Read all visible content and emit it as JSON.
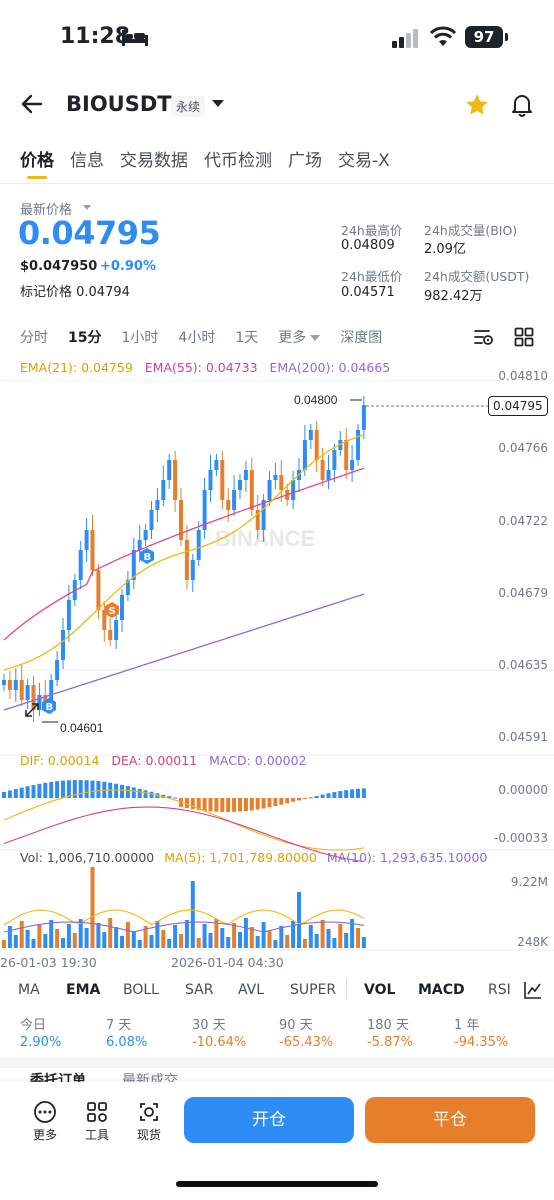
{
  "status": {
    "time": "11:28",
    "battery": "97"
  },
  "header": {
    "pair": "BIOUSDT",
    "badge": "永续"
  },
  "tabs": [
    "价格",
    "信息",
    "交易数据",
    "代币检测",
    "广场",
    "交易-X"
  ],
  "price": {
    "latest_label": "最新价格",
    "last": "0.04795",
    "usd": "$0.047950",
    "change": "+0.90%",
    "mark_label": "标记价格 0.04794"
  },
  "stats": {
    "high_label": "24h最高价",
    "high": "0.04809",
    "vol_label": "24h成交量(BIO)",
    "vol": "2.09亿",
    "low_label": "24h最低价",
    "low": "0.04571",
    "turnover_label": "24h成交额(USDT)",
    "turnover": "982.42万"
  },
  "intervals": [
    "分时",
    "15分",
    "1小时",
    "4小时",
    "1天",
    "更多",
    "深度图"
  ],
  "ema": {
    "ema21": "EMA(21): 0.04759",
    "ema55": "EMA(55): 0.04733",
    "ema200": "EMA(200): 0.04665"
  },
  "colors": {
    "ema21": "#f0b90b",
    "ema55": "#e0468c",
    "ema200": "#8e6bd1",
    "up": "#2e8df4",
    "down": "#e67e2c"
  },
  "price_axis": [
    "0.04810",
    "0.04766",
    "0.04722",
    "0.04679",
    "0.04635",
    "0.04591"
  ],
  "price_tag": "0.04795",
  "high_marker": "0.04800",
  "low_marker": "0.04601",
  "macd": {
    "dif": "DIF: 0.00014",
    "dea": "DEA: 0.00011",
    "macd": "MACD: 0.00002",
    "axis": [
      "0.00000",
      "-0.00033"
    ]
  },
  "vol": {
    "vol": "Vol: 1,006,710.00000",
    "ma5": "MA(5): 1,701,789.80000",
    "ma10": "MA(10): 1,293,635.10000",
    "axis": [
      "9.22M",
      "248K"
    ]
  },
  "time_axis": [
    "26-01-03 19:30",
    "2026-01-04 04:30"
  ],
  "watermark": "BINANCE",
  "indicators": [
    "MA",
    "EMA",
    "BOLL",
    "SAR",
    "AVL",
    "SUPER",
    "VOL",
    "MACD",
    "RSI"
  ],
  "periods": [
    {
      "label": "今日",
      "value": "2.90%"
    },
    {
      "label": "7 天",
      "value": "6.08%"
    },
    {
      "label": "30 天",
      "value": "-10.64%"
    },
    {
      "label": "90 天",
      "value": "-65.43%"
    },
    {
      "label": "180 天",
      "value": "-5.87%"
    },
    {
      "label": "1 年",
      "value": "-94.35%"
    }
  ],
  "bottom_tabs": [
    "委托订单",
    "最新成交"
  ],
  "bottom_bar": {
    "more": "更多",
    "tools": "工具",
    "spot": "现货",
    "open": "开仓",
    "close": "平仓"
  }
}
